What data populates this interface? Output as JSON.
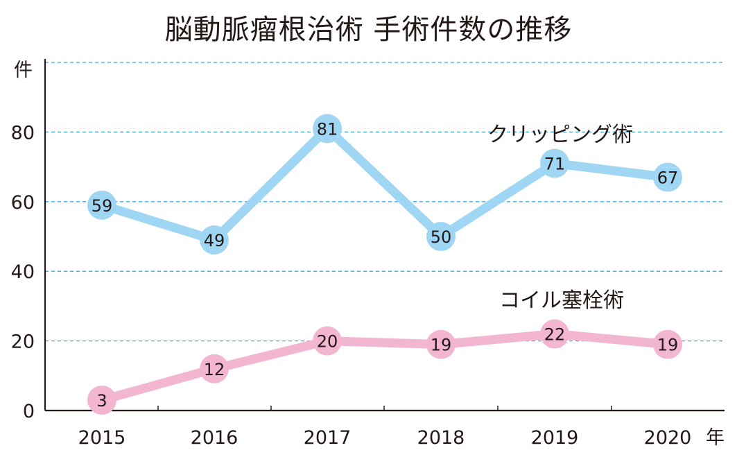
{
  "chart_data": {
    "type": "line",
    "title": "脳動脈瘤根治術 手術件数の推移",
    "ylabel": "件",
    "xlabel": "年",
    "categories": [
      "2015",
      "2016",
      "2017",
      "2018",
      "2019",
      "2020"
    ],
    "ylim": [
      0,
      100
    ],
    "yticks": [
      "0",
      "20",
      "40",
      "60",
      "80"
    ],
    "grid": true,
    "series": [
      {
        "name": "クリッピング術",
        "values": [
          59,
          49,
          81,
          50,
          71,
          67
        ],
        "color": "#9fd6f3"
      },
      {
        "name": "コイル塞栓術",
        "values": [
          3,
          12,
          20,
          19,
          22,
          19
        ],
        "color": "#f3b6d1"
      }
    ],
    "axis_color": "#231815",
    "grid_color": "#3aa9dd"
  }
}
